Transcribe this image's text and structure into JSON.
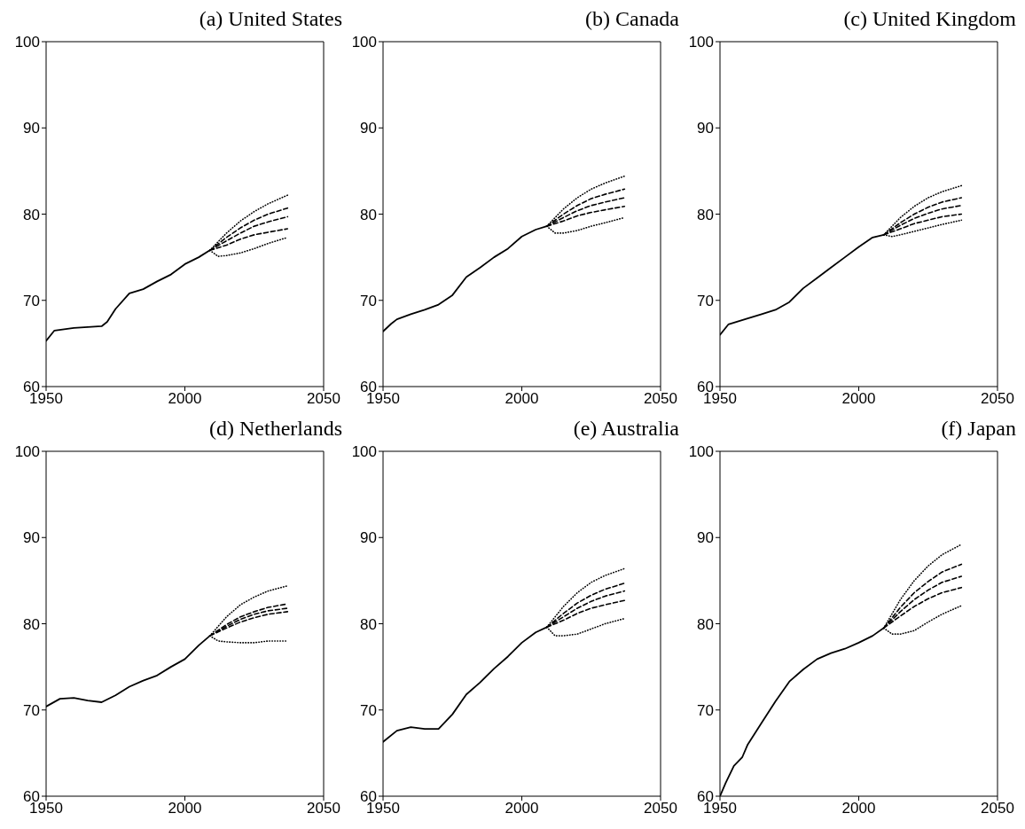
{
  "chart_data": [
    {
      "type": "line",
      "title": "(a) United States",
      "xlim": [
        1950,
        2050
      ],
      "xticks": [
        1950,
        2000,
        2050
      ],
      "ylim": [
        60,
        100
      ],
      "yticks": [
        60,
        70,
        80,
        90,
        100
      ],
      "series": [
        {
          "color": "#000000",
          "line_style": "solid",
          "x": [
            1950,
            1953,
            1960,
            1965,
            1970,
            1972,
            1975,
            1980,
            1985,
            1990,
            1995,
            2000,
            2005,
            2009
          ],
          "values": [
            65.3,
            66.5,
            66.8,
            66.9,
            67.0,
            67.5,
            69.0,
            70.8,
            71.3,
            72.2,
            73.0,
            74.2,
            75.0,
            75.8
          ]
        },
        {
          "color": "#000000",
          "line_style": "dotted",
          "x": [
            2009,
            2015,
            2020,
            2025,
            2030,
            2037
          ],
          "values": [
            75.8,
            77.8,
            79.2,
            80.3,
            81.2,
            82.2
          ]
        },
        {
          "color": "#000000",
          "line_style": "dashed",
          "x": [
            2009,
            2015,
            2020,
            2025,
            2030,
            2037
          ],
          "values": [
            75.8,
            77.3,
            78.4,
            79.3,
            80.0,
            80.7
          ]
        },
        {
          "color": "#000000",
          "line_style": "dashed",
          "x": [
            2009,
            2015,
            2020,
            2025,
            2030,
            2037
          ],
          "values": [
            75.8,
            76.9,
            77.8,
            78.6,
            79.1,
            79.7
          ]
        },
        {
          "color": "#000000",
          "line_style": "dashed",
          "x": [
            2009,
            2015,
            2020,
            2025,
            2030,
            2037
          ],
          "values": [
            75.8,
            76.4,
            77.1,
            77.6,
            77.9,
            78.3
          ]
        },
        {
          "color": "#000000",
          "line_style": "dotted",
          "x": [
            2009,
            2012,
            2015,
            2020,
            2025,
            2030,
            2037
          ],
          "values": [
            75.8,
            75.1,
            75.2,
            75.5,
            76.0,
            76.6,
            77.3
          ]
        }
      ]
    },
    {
      "type": "line",
      "title": "(b) Canada",
      "xlim": [
        1950,
        2050
      ],
      "xticks": [
        1950,
        2000,
        2050
      ],
      "ylim": [
        60,
        100
      ],
      "yticks": [
        60,
        70,
        80,
        90,
        100
      ],
      "series": [
        {
          "color": "#000000",
          "line_style": "solid",
          "x": [
            1950,
            1953,
            1955,
            1960,
            1965,
            1970,
            1975,
            1980,
            1985,
            1990,
            1995,
            2000,
            2005,
            2009
          ],
          "values": [
            66.4,
            67.3,
            67.8,
            68.4,
            68.9,
            69.5,
            70.6,
            72.7,
            73.8,
            75.0,
            76.0,
            77.4,
            78.2,
            78.6
          ]
        },
        {
          "color": "#000000",
          "line_style": "dotted",
          "x": [
            2009,
            2015,
            2020,
            2025,
            2030,
            2037
          ],
          "values": [
            78.6,
            80.6,
            81.9,
            82.9,
            83.6,
            84.4
          ]
        },
        {
          "color": "#000000",
          "line_style": "dashed",
          "x": [
            2009,
            2015,
            2020,
            2025,
            2030,
            2037
          ],
          "values": [
            78.6,
            80.0,
            81.0,
            81.8,
            82.3,
            82.9
          ]
        },
        {
          "color": "#000000",
          "line_style": "dashed",
          "x": [
            2009,
            2015,
            2020,
            2025,
            2030,
            2037
          ],
          "values": [
            78.6,
            79.6,
            80.4,
            81.0,
            81.4,
            81.9
          ]
        },
        {
          "color": "#000000",
          "line_style": "dashed",
          "x": [
            2009,
            2015,
            2020,
            2025,
            2030,
            2037
          ],
          "values": [
            78.6,
            79.2,
            79.8,
            80.2,
            80.5,
            80.9
          ]
        },
        {
          "color": "#000000",
          "line_style": "dotted",
          "x": [
            2009,
            2012,
            2015,
            2020,
            2025,
            2030,
            2037
          ],
          "values": [
            78.6,
            77.8,
            77.8,
            78.1,
            78.6,
            79.0,
            79.6
          ]
        }
      ]
    },
    {
      "type": "line",
      "title": "(c) United Kingdom",
      "xlim": [
        1950,
        2050
      ],
      "xticks": [
        1950,
        2000,
        2050
      ],
      "ylim": [
        60,
        100
      ],
      "yticks": [
        60,
        70,
        80,
        90,
        100
      ],
      "series": [
        {
          "color": "#000000",
          "line_style": "solid",
          "x": [
            1950,
            1953,
            1960,
            1965,
            1970,
            1975,
            1980,
            1985,
            1990,
            1995,
            2000,
            2005,
            2009
          ],
          "values": [
            66.0,
            67.2,
            67.9,
            68.4,
            68.9,
            69.8,
            71.4,
            72.6,
            73.8,
            75.0,
            76.2,
            77.3,
            77.6
          ]
        },
        {
          "color": "#000000",
          "line_style": "dotted",
          "x": [
            2009,
            2015,
            2020,
            2025,
            2030,
            2037
          ],
          "values": [
            77.6,
            79.6,
            80.9,
            81.9,
            82.6,
            83.3
          ]
        },
        {
          "color": "#000000",
          "line_style": "dashed",
          "x": [
            2009,
            2015,
            2020,
            2025,
            2030,
            2037
          ],
          "values": [
            77.6,
            79.0,
            80.0,
            80.8,
            81.4,
            81.9
          ]
        },
        {
          "color": "#000000",
          "line_style": "dashed",
          "x": [
            2009,
            2015,
            2020,
            2025,
            2030,
            2037
          ],
          "values": [
            77.6,
            78.7,
            79.5,
            80.1,
            80.6,
            81.0
          ]
        },
        {
          "color": "#000000",
          "line_style": "dashed",
          "x": [
            2009,
            2015,
            2020,
            2025,
            2030,
            2037
          ],
          "values": [
            77.6,
            78.3,
            78.9,
            79.3,
            79.7,
            80.0
          ]
        },
        {
          "color": "#000000",
          "line_style": "dotted",
          "x": [
            2009,
            2012,
            2015,
            2020,
            2025,
            2030,
            2037
          ],
          "values": [
            77.6,
            77.4,
            77.6,
            78.0,
            78.4,
            78.8,
            79.3
          ]
        }
      ]
    },
    {
      "type": "line",
      "title": "(d) Netherlands",
      "xlim": [
        1950,
        2050
      ],
      "xticks": [
        1950,
        2000,
        2050
      ],
      "ylim": [
        60,
        100
      ],
      "yticks": [
        60,
        70,
        80,
        90,
        100
      ],
      "series": [
        {
          "color": "#000000",
          "line_style": "solid",
          "x": [
            1950,
            1955,
            1960,
            1965,
            1970,
            1975,
            1980,
            1985,
            1990,
            1995,
            2000,
            2005,
            2009
          ],
          "values": [
            70.4,
            71.3,
            71.4,
            71.1,
            70.9,
            71.7,
            72.7,
            73.4,
            74.0,
            75.0,
            75.9,
            77.5,
            78.6
          ]
        },
        {
          "color": "#000000",
          "line_style": "dotted",
          "x": [
            2009,
            2015,
            2020,
            2025,
            2030,
            2037
          ],
          "values": [
            78.6,
            80.8,
            82.2,
            83.1,
            83.8,
            84.4
          ]
        },
        {
          "color": "#000000",
          "line_style": "dashed",
          "x": [
            2009,
            2015,
            2020,
            2025,
            2030,
            2037
          ],
          "values": [
            78.6,
            79.9,
            80.8,
            81.4,
            81.9,
            82.3
          ]
        },
        {
          "color": "#000000",
          "line_style": "dashed",
          "x": [
            2009,
            2015,
            2020,
            2025,
            2030,
            2037
          ],
          "values": [
            78.6,
            79.7,
            80.5,
            81.1,
            81.5,
            81.8
          ]
        },
        {
          "color": "#000000",
          "line_style": "dashed",
          "x": [
            2009,
            2015,
            2020,
            2025,
            2030,
            2037
          ],
          "values": [
            78.6,
            79.5,
            80.2,
            80.7,
            81.1,
            81.4
          ]
        },
        {
          "color": "#000000",
          "line_style": "dotted",
          "x": [
            2009,
            2012,
            2015,
            2020,
            2025,
            2030,
            2037
          ],
          "values": [
            78.6,
            78.0,
            77.9,
            77.8,
            77.8,
            78.0,
            78.0
          ]
        }
      ]
    },
    {
      "type": "line",
      "title": "(e) Australia",
      "xlim": [
        1950,
        2050
      ],
      "xticks": [
        1950,
        2000,
        2050
      ],
      "ylim": [
        60,
        100
      ],
      "yticks": [
        60,
        70,
        80,
        90,
        100
      ],
      "series": [
        {
          "color": "#000000",
          "line_style": "solid",
          "x": [
            1950,
            1955,
            1960,
            1965,
            1970,
            1975,
            1980,
            1985,
            1990,
            1995,
            2000,
            2005,
            2009
          ],
          "values": [
            66.3,
            67.6,
            68.0,
            67.8,
            67.8,
            69.5,
            71.8,
            73.2,
            74.8,
            76.2,
            77.8,
            79.0,
            79.6
          ]
        },
        {
          "color": "#000000",
          "line_style": "dotted",
          "x": [
            2009,
            2015,
            2020,
            2025,
            2030,
            2037
          ],
          "values": [
            79.6,
            82.0,
            83.6,
            84.8,
            85.6,
            86.4
          ]
        },
        {
          "color": "#000000",
          "line_style": "dashed",
          "x": [
            2009,
            2015,
            2020,
            2025,
            2030,
            2037
          ],
          "values": [
            79.6,
            81.2,
            82.4,
            83.3,
            84.0,
            84.7
          ]
        },
        {
          "color": "#000000",
          "line_style": "dashed",
          "x": [
            2009,
            2015,
            2020,
            2025,
            2030,
            2037
          ],
          "values": [
            79.6,
            80.8,
            81.8,
            82.6,
            83.2,
            83.8
          ]
        },
        {
          "color": "#000000",
          "line_style": "dashed",
          "x": [
            2009,
            2015,
            2020,
            2025,
            2030,
            2037
          ],
          "values": [
            79.6,
            80.4,
            81.2,
            81.8,
            82.2,
            82.7
          ]
        },
        {
          "color": "#000000",
          "line_style": "dotted",
          "x": [
            2009,
            2012,
            2015,
            2020,
            2025,
            2030,
            2037
          ],
          "values": [
            79.6,
            78.6,
            78.6,
            78.8,
            79.4,
            80.0,
            80.6
          ]
        }
      ]
    },
    {
      "type": "line",
      "title": "(f) Japan",
      "xlim": [
        1950,
        2050
      ],
      "xticks": [
        1950,
        2000,
        2050
      ],
      "ylim": [
        60,
        100
      ],
      "yticks": [
        60,
        70,
        80,
        90,
        100
      ],
      "series": [
        {
          "color": "#000000",
          "line_style": "solid",
          "x": [
            1950,
            1952,
            1955,
            1958,
            1960,
            1965,
            1970,
            1975,
            1980,
            1985,
            1990,
            1995,
            2000,
            2005,
            2009
          ],
          "values": [
            60.0,
            61.5,
            63.5,
            64.5,
            66.0,
            68.5,
            71.0,
            73.3,
            74.7,
            75.9,
            76.6,
            77.1,
            77.8,
            78.6,
            79.5
          ]
        },
        {
          "color": "#000000",
          "line_style": "dotted",
          "x": [
            2009,
            2015,
            2020,
            2025,
            2030,
            2037
          ],
          "values": [
            79.5,
            82.8,
            85.0,
            86.7,
            88.0,
            89.2
          ]
        },
        {
          "color": "#000000",
          "line_style": "dashed",
          "x": [
            2009,
            2015,
            2020,
            2025,
            2030,
            2037
          ],
          "values": [
            79.5,
            81.9,
            83.6,
            84.9,
            86.0,
            86.9
          ]
        },
        {
          "color": "#000000",
          "line_style": "dashed",
          "x": [
            2009,
            2015,
            2020,
            2025,
            2030,
            2037
          ],
          "values": [
            79.5,
            81.4,
            82.8,
            83.9,
            84.8,
            85.5
          ]
        },
        {
          "color": "#000000",
          "line_style": "dashed",
          "x": [
            2009,
            2015,
            2020,
            2025,
            2030,
            2037
          ],
          "values": [
            79.5,
            80.9,
            82.0,
            82.9,
            83.6,
            84.2
          ]
        },
        {
          "color": "#000000",
          "line_style": "dotted",
          "x": [
            2009,
            2012,
            2015,
            2020,
            2025,
            2030,
            2037
          ],
          "values": [
            79.5,
            78.8,
            78.8,
            79.2,
            80.2,
            81.1,
            82.1
          ]
        }
      ]
    }
  ]
}
